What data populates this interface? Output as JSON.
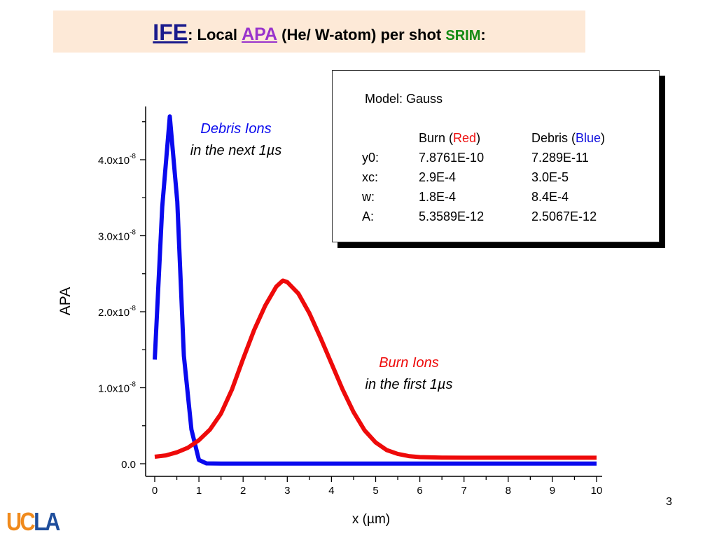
{
  "title": {
    "ife": "IFE",
    "colon1": ":",
    "local": " Local ",
    "apa": "APA",
    "rest": " (He/ W-atom) per shot ",
    "srim": "SRIM",
    "colon2": ":"
  },
  "fit_box": {
    "model": "Model: Gauss",
    "headers": {
      "burn": "Burn (",
      "burn_color": "Red",
      "debris": "Debris (",
      "debris_color": "Blue",
      "close": ")"
    },
    "rows": [
      {
        "param": "y0:",
        "burn": "7.8761E-10",
        "debris": "7.289E-11"
      },
      {
        "param": "xc:",
        "burn": "2.9E-4",
        "debris": "3.0E-5"
      },
      {
        "param": "w:",
        "burn": "1.8E-4",
        "debris": "8.4E-4"
      },
      {
        "param": "A:",
        "burn": "5.3589E-12",
        "debris": "2.5067E-12"
      }
    ]
  },
  "page_number": "3",
  "logo": {
    "uc": "UC",
    "la": "LA"
  },
  "chart_data": {
    "type": "line",
    "xlabel": "x (µm)",
    "ylabel": "APA",
    "xlim": [
      0,
      10
    ],
    "ylim": [
      0,
      4.6e-08
    ],
    "xticks": [
      "0",
      "1",
      "2",
      "3",
      "4",
      "5",
      "6",
      "7",
      "8",
      "9",
      "10"
    ],
    "yticks": [
      {
        "value": 0,
        "label": "0.0",
        "exp": ""
      },
      {
        "value": 1e-08,
        "label": "1.0x10",
        "exp": "-8"
      },
      {
        "value": 2e-08,
        "label": "2.0x10",
        "exp": "-8"
      },
      {
        "value": 3e-08,
        "label": "3.0x10",
        "exp": "-8"
      },
      {
        "value": 4e-08,
        "label": "4.0x10",
        "exp": "-8"
      }
    ],
    "grid": false,
    "annotations": [
      {
        "series": "debris",
        "line1": "Debris Ions",
        "line2": "in the next 1µs"
      },
      {
        "series": "burn",
        "line1": "Burn Ions",
        "line2": "in the first 1µs"
      }
    ],
    "series": [
      {
        "name": "debris",
        "color": "#0a0aee",
        "x": [
          0,
          0.17,
          0.34,
          0.51,
          0.66,
          0.83,
          1.0,
          1.17,
          1.5,
          2,
          3,
          4,
          5,
          6,
          7,
          8,
          9,
          10
        ],
        "y": [
          1.37e-08,
          3.38e-08,
          4.57e-08,
          3.45e-08,
          1.42e-08,
          4.5e-09,
          5e-10,
          5e-11,
          2e-11,
          2e-11,
          2e-11,
          2e-11,
          2e-11,
          2e-11,
          2e-11,
          2e-11,
          2e-11,
          2e-11
        ]
      },
      {
        "name": "burn",
        "color": "#ee0a0a",
        "x": [
          0,
          0.25,
          0.5,
          0.75,
          1,
          1.25,
          1.5,
          1.75,
          2,
          2.25,
          2.5,
          2.75,
          2.9,
          3,
          3.25,
          3.5,
          3.75,
          4,
          4.25,
          4.5,
          4.75,
          5,
          5.25,
          5.5,
          5.75,
          6,
          6.5,
          7,
          8,
          9,
          10
        ],
        "y": [
          9.2e-10,
          1.1e-09,
          1.5e-09,
          2.1e-09,
          3.1e-09,
          4.5e-09,
          6.6e-09,
          9.8e-09,
          1.38e-08,
          1.76e-08,
          2.08e-08,
          2.33e-08,
          2.41e-08,
          2.39e-08,
          2.24e-08,
          1.98e-08,
          1.66e-08,
          1.32e-08,
          9.8e-09,
          6.8e-09,
          4.4e-09,
          2.8e-09,
          1.8e-09,
          1.3e-09,
          1e-09,
          8.8e-10,
          8.1e-10,
          7.9e-10,
          7.9e-10,
          7.9e-10,
          7.9e-10
        ]
      }
    ]
  }
}
